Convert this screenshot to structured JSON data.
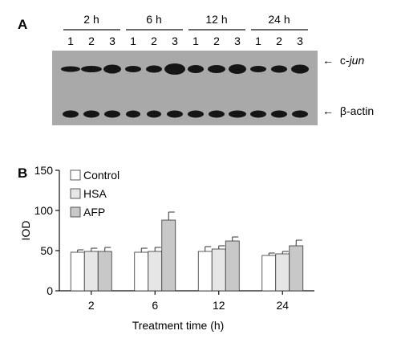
{
  "panel_a": {
    "label": "A",
    "time_groups": [
      {
        "label": "2 h",
        "lanes": [
          "1",
          "2",
          "3"
        ]
      },
      {
        "label": "6 h",
        "lanes": [
          "1",
          "2",
          "3"
        ]
      },
      {
        "label": "12 h",
        "lanes": [
          "1",
          "2",
          "3"
        ]
      },
      {
        "label": "24 h",
        "lanes": [
          "1",
          "2",
          "3"
        ]
      }
    ],
    "bands": [
      {
        "name_prefix": "c-",
        "name_italic": "jun",
        "arrow": "←"
      },
      {
        "name_prefix": "β-actin",
        "name_italic": "",
        "arrow": "←"
      }
    ],
    "colors": {
      "blot_background": "#a9a9a9",
      "band": "#151515"
    }
  },
  "chart_data": {
    "panel_label": "B",
    "type": "bar",
    "categories": [
      "2",
      "6",
      "12",
      "24"
    ],
    "series": [
      {
        "name": "Control",
        "values": [
          48,
          48,
          49,
          44
        ],
        "errors": [
          3,
          5,
          6,
          3
        ],
        "color": "#ffffff"
      },
      {
        "name": "HSA",
        "values": [
          49,
          49,
          52,
          46
        ],
        "errors": [
          4,
          5,
          4,
          3
        ],
        "color": "#e6e6e6"
      },
      {
        "name": "AFP",
        "values": [
          49,
          88,
          62,
          56
        ],
        "errors": [
          5,
          10,
          5,
          7
        ],
        "color": "#c8c8c8"
      }
    ],
    "xlabel": "Treatment time (h)",
    "ylabel": "IOD",
    "ylim": [
      0,
      150
    ],
    "yticks": [
      0,
      50,
      100,
      150
    ],
    "legend": "top-left",
    "grid": false
  }
}
